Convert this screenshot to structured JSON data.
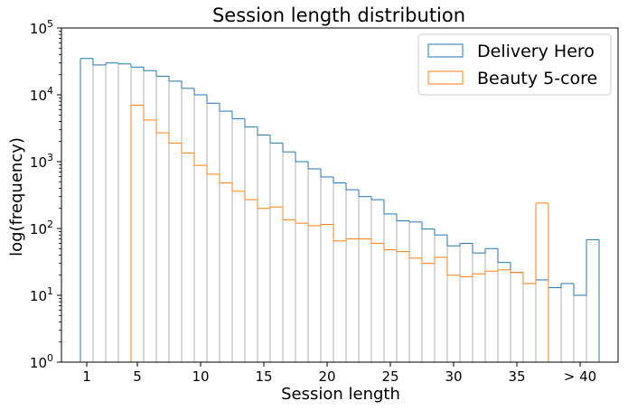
{
  "chart_data": {
    "type": "histogram",
    "title": "Session length distribution",
    "xlabel": "Session length",
    "ylabel": "log(frequency)",
    "yscale": "log",
    "ylim": [
      1,
      100000
    ],
    "y_ticks": [
      {
        "value": 1,
        "base": "10",
        "exp": "0"
      },
      {
        "value": 10,
        "base": "10",
        "exp": "1"
      },
      {
        "value": 100,
        "base": "10",
        "exp": "2"
      },
      {
        "value": 1000,
        "base": "10",
        "exp": "3"
      },
      {
        "value": 10000,
        "base": "10",
        "exp": "4"
      },
      {
        "value": 100000,
        "base": "10",
        "exp": "5"
      }
    ],
    "xlim": [
      -1.5,
      42.5
    ],
    "x_ticks": [
      {
        "value": 0.5,
        "label": "1"
      },
      {
        "value": 4.5,
        "label": "5"
      },
      {
        "value": 9.5,
        "label": "10"
      },
      {
        "value": 14.5,
        "label": "15"
      },
      {
        "value": 19.5,
        "label": "20"
      },
      {
        "value": 24.5,
        "label": "25"
      },
      {
        "value": 29.5,
        "label": "30"
      },
      {
        "value": 34.5,
        "label": "35"
      },
      {
        "value": 39.5,
        "label": "> 40"
      }
    ],
    "grid": false,
    "legend_position": "top-right",
    "series": [
      {
        "name": "Delivery Hero",
        "color": "#1f77b4",
        "bin_start": 1,
        "values": [
          35000,
          28000,
          30000,
          29000,
          26000,
          23000,
          19000,
          16000,
          12500,
          10000,
          7500,
          5700,
          4400,
          3300,
          2500,
          1900,
          1400,
          1000,
          780,
          590,
          480,
          380,
          300,
          270,
          165,
          130,
          125,
          98,
          80,
          55,
          60,
          43,
          50,
          31,
          22,
          15,
          17,
          13,
          15,
          10,
          68
        ]
      },
      {
        "name": "Beauty 5-core",
        "color": "#ff7f0e",
        "bin_start": 5,
        "values": [
          7000,
          4200,
          2700,
          1900,
          1350,
          880,
          650,
          480,
          360,
          270,
          200,
          210,
          135,
          120,
          110,
          115,
          65,
          70,
          70,
          60,
          48,
          45,
          36,
          30,
          37,
          20,
          19,
          21,
          23,
          24,
          22,
          15,
          240
        ]
      }
    ]
  }
}
